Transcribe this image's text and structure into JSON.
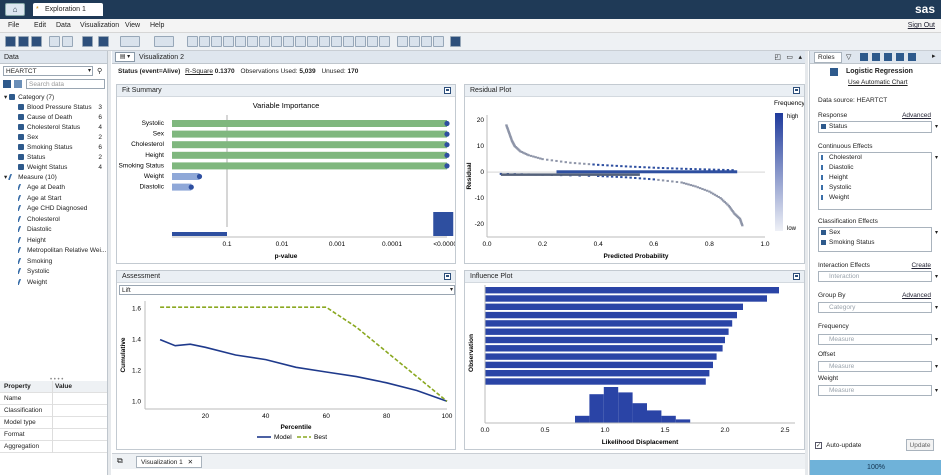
{
  "window": {
    "tab_title": "Exploration 1",
    "logo": "sas"
  },
  "menu": {
    "items": [
      "File",
      "Edit",
      "Data",
      "Visualization",
      "View",
      "Help"
    ],
    "sign_out": "Sign Out"
  },
  "data_pane": {
    "title": "Data",
    "source": "HEARTCT",
    "search_placeholder": "Search data",
    "category_group": "Category (7)",
    "categories": [
      {
        "name": "Blood Pressure Status",
        "count": "3"
      },
      {
        "name": "Cause of Death",
        "count": "6"
      },
      {
        "name": "Cholesterol Status",
        "count": "4"
      },
      {
        "name": "Sex",
        "count": "2"
      },
      {
        "name": "Smoking Status",
        "count": "6"
      },
      {
        "name": "Status",
        "count": "2"
      },
      {
        "name": "Weight Status",
        "count": "4"
      }
    ],
    "measure_group": "Measure (10)",
    "measures": [
      "Age at Death",
      "Age at Start",
      "Age CHD Diagnosed",
      "Cholesterol",
      "Diastolic",
      "Height",
      "Metropolitan Relative Wei...",
      "Smoking",
      "Systolic",
      "Weight"
    ],
    "properties": {
      "col1": "Property",
      "col2": "Value",
      "rows": [
        "Name",
        "Classification",
        "Model type",
        "Format",
        "Aggregation"
      ]
    }
  },
  "center": {
    "title": "Visualization 2",
    "status_label": "Status (event=Alive)",
    "rsquare_label": "R-Square",
    "rsquare_value": "0.1370",
    "obs_label": "Observations Used:",
    "obs_value": "5,039",
    "unused_label": "Unused:",
    "unused_value": "170",
    "bottom_tab": "Visualization 1"
  },
  "fit_summary": {
    "title": "Fit Summary",
    "chart_data": {
      "type": "bar",
      "title": "Variable Importance",
      "xlabel": "p-value",
      "categories": [
        "Systolic",
        "Sex",
        "Cholesterol",
        "Height",
        "Smoking Status",
        "Weight",
        "Diastolic"
      ],
      "values_log10_p": [
        -5,
        -5,
        -5,
        -5,
        -5,
        -0.5,
        -0.35
      ],
      "xticks": [
        "0.1",
        "0.01",
        "0.001",
        "0.0001",
        "<0.00001"
      ],
      "colors": {
        "significant": "#7fb77e",
        "other": "#8fa8d8",
        "marker": "#2e4fa0"
      }
    }
  },
  "residual_plot": {
    "title": "Residual Plot",
    "chart_data": {
      "type": "scatter",
      "xlabel": "Predicted Probability",
      "ylabel": "Residual",
      "xlim": [
        0,
        1
      ],
      "ylim": [
        -25,
        22
      ],
      "xticks": [
        "0.0",
        "0.2",
        "0.4",
        "0.6",
        "0.8",
        "1.0"
      ],
      "yticks": [
        "20",
        "10",
        "0",
        "-10",
        "-20"
      ],
      "legend": {
        "title": "Frequency",
        "high": "high",
        "low": "low"
      },
      "upper_series": [
        [
          0.07,
          18
        ],
        [
          0.08,
          15
        ],
        [
          0.09,
          12
        ],
        [
          0.1,
          10
        ],
        [
          0.12,
          8
        ],
        [
          0.15,
          6.5
        ],
        [
          0.2,
          5
        ],
        [
          0.3,
          3.6
        ],
        [
          0.4,
          2.8
        ],
        [
          0.5,
          2.2
        ],
        [
          0.6,
          1.7
        ],
        [
          0.7,
          1.3
        ],
        [
          0.8,
          1.0
        ],
        [
          0.9,
          0.7
        ]
      ],
      "lower_series": [
        [
          0.05,
          -0.7
        ],
        [
          0.2,
          -1.0
        ],
        [
          0.4,
          -1.5
        ],
        [
          0.5,
          -2.0
        ],
        [
          0.6,
          -2.8
        ],
        [
          0.7,
          -4
        ],
        [
          0.75,
          -5.5
        ],
        [
          0.8,
          -7.5
        ],
        [
          0.84,
          -10
        ],
        [
          0.87,
          -13
        ],
        [
          0.89,
          -16
        ],
        [
          0.91,
          -18
        ],
        [
          0.92,
          -21
        ]
      ]
    }
  },
  "assessment": {
    "title": "Assessment",
    "selector": "Lift",
    "chart_data": {
      "type": "line",
      "xlabel": "Percentile",
      "ylabel": "Cumulative",
      "xlim": [
        0,
        100
      ],
      "ylim": [
        0.95,
        1.65
      ],
      "xticks": [
        "20",
        "40",
        "60",
        "80",
        "100"
      ],
      "yticks": [
        "1.6",
        "1.4",
        "1.2",
        "1.0"
      ],
      "series": [
        {
          "name": "Model",
          "color": "#1f3a8c",
          "x": [
            5,
            10,
            15,
            20,
            30,
            40,
            50,
            60,
            70,
            80,
            90,
            100
          ],
          "y": [
            1.4,
            1.36,
            1.37,
            1.35,
            1.3,
            1.27,
            1.22,
            1.19,
            1.16,
            1.12,
            1.07,
            1.0
          ]
        },
        {
          "name": "Best",
          "color": "#8aa820",
          "x": [
            5,
            10,
            20,
            30,
            40,
            50,
            60,
            70,
            80,
            90,
            100
          ],
          "y": [
            1.61,
            1.61,
            1.61,
            1.61,
            1.61,
            1.61,
            1.61,
            1.48,
            1.32,
            1.16,
            1.0
          ]
        }
      ]
    }
  },
  "influence_plot": {
    "title": "Influence Plot",
    "chart_data": {
      "type": "bar",
      "xlabel": "Likelihood Displacement",
      "ylabel": "Observation",
      "xticks": [
        "0.0",
        "0.5",
        "1.0",
        "1.5",
        "2.0",
        "2.5"
      ],
      "bars": [
        2.45,
        2.35,
        2.15,
        2.1,
        2.06,
        2.03,
        2.0,
        1.98,
        1.93,
        1.9,
        1.87,
        1.84
      ],
      "histogram": [
        20,
        80,
        100,
        85,
        55,
        35,
        20,
        10
      ]
    }
  },
  "roles": {
    "tab": "Roles",
    "model": "Logistic Regression",
    "auto_chart": "Use Automatic Chart",
    "data_source": "Data source: HEARTCT",
    "response_label": "Response",
    "advanced": "Advanced",
    "response": "Status",
    "continuous_label": "Continuous Effects",
    "continuous": [
      "Cholesterol",
      "Diastolic",
      "Height",
      "Systolic",
      "Weight"
    ],
    "classification_label": "Classification Effects",
    "classification": [
      "Sex",
      "Smoking Status"
    ],
    "interaction_label": "Interaction Effects",
    "create": "Create",
    "interaction_placeholder": "Interaction",
    "groupby_label": "Group By",
    "groupby_placeholder": "Category",
    "frequency_label": "Frequency",
    "offset_label": "Offset",
    "weight_label": "Weight",
    "measure_placeholder": "Measure",
    "auto_update": "Auto-update",
    "update": "Update",
    "progress": "100%"
  }
}
